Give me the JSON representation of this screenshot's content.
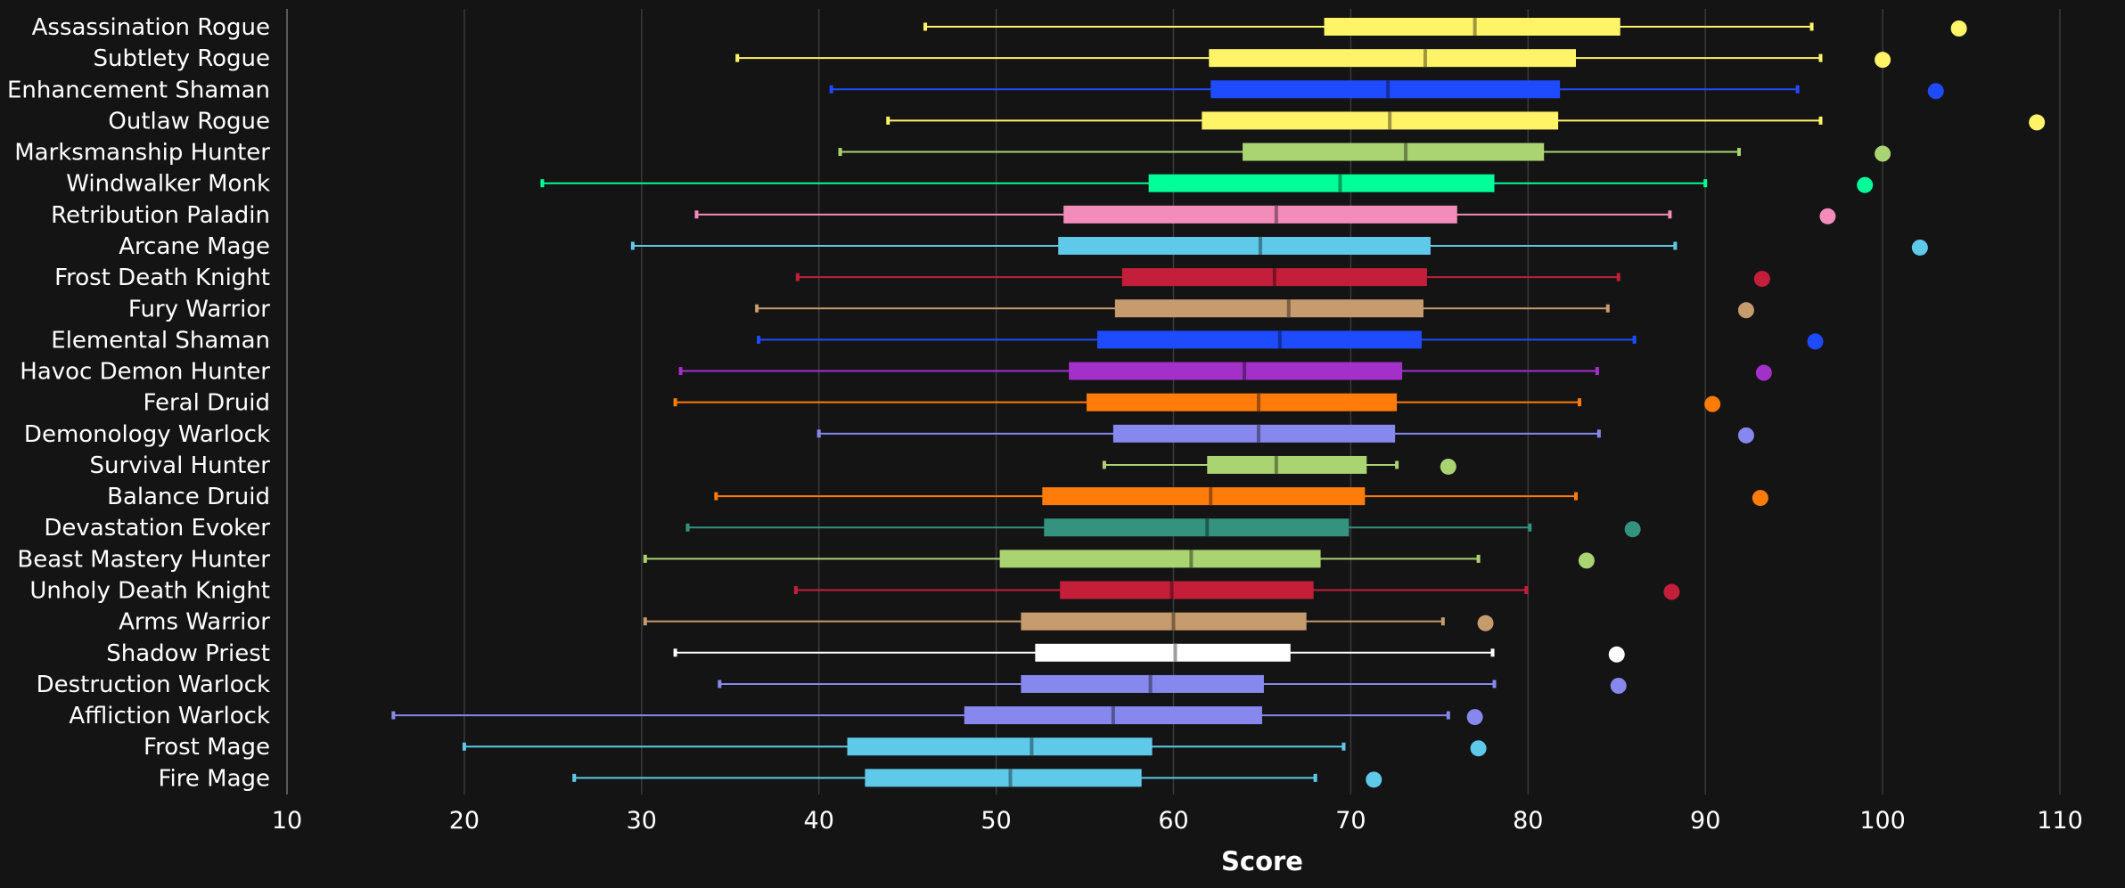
{
  "chart_data": {
    "type": "box",
    "xlabel": "Score",
    "xlim": [
      10,
      110
    ],
    "xticks": [
      10,
      20,
      30,
      40,
      50,
      60,
      70,
      80,
      90,
      100,
      110
    ],
    "grid": true,
    "background": "#141414",
    "series": [
      {
        "name": "Assassination Rogue",
        "color": "#FFF468",
        "min": 46.0,
        "q1": 68.5,
        "median": 77.0,
        "q3": 85.2,
        "max": 96.0,
        "outlier": 104.3
      },
      {
        "name": "Subtlety Rogue",
        "color": "#FFF468",
        "min": 35.4,
        "q1": 62.0,
        "median": 74.2,
        "q3": 82.7,
        "max": 96.5,
        "outlier": 100.0
      },
      {
        "name": "Enhancement Shaman",
        "color": "#1F4BFF",
        "min": 40.7,
        "q1": 62.1,
        "median": 72.1,
        "q3": 81.8,
        "max": 95.2,
        "outlier": 103.0
      },
      {
        "name": "Outlaw Rogue",
        "color": "#FFF468",
        "min": 43.9,
        "q1": 61.6,
        "median": 72.2,
        "q3": 81.7,
        "max": 96.5,
        "outlier": 108.7
      },
      {
        "name": "Marksmanship Hunter",
        "color": "#AAD372",
        "min": 41.2,
        "q1": 63.9,
        "median": 73.1,
        "q3": 80.9,
        "max": 91.9,
        "outlier": 100.0
      },
      {
        "name": "Windwalker Monk",
        "color": "#00FF98",
        "min": 24.4,
        "q1": 58.6,
        "median": 69.4,
        "q3": 78.1,
        "max": 90.0,
        "outlier": 99.0
      },
      {
        "name": "Retribution Paladin",
        "color": "#F48CBA",
        "min": 33.1,
        "q1": 53.8,
        "median": 65.8,
        "q3": 76.0,
        "max": 88.0,
        "outlier": 96.9
      },
      {
        "name": "Arcane Mage",
        "color": "#5FC9EA",
        "min": 29.5,
        "q1": 53.5,
        "median": 64.9,
        "q3": 74.5,
        "max": 88.3,
        "outlier": 102.1
      },
      {
        "name": "Frost Death Knight",
        "color": "#C41E3A",
        "min": 38.8,
        "q1": 57.1,
        "median": 65.7,
        "q3": 74.3,
        "max": 85.1,
        "outlier": 93.2
      },
      {
        "name": "Fury Warrior",
        "color": "#C69B6D",
        "min": 36.5,
        "q1": 56.7,
        "median": 66.5,
        "q3": 74.1,
        "max": 84.5,
        "outlier": 92.3
      },
      {
        "name": "Elemental Shaman",
        "color": "#1F4BFF",
        "min": 36.6,
        "q1": 55.7,
        "median": 66.0,
        "q3": 74.0,
        "max": 86.0,
        "outlier": 96.2
      },
      {
        "name": "Havoc Demon Hunter",
        "color": "#A330C9",
        "min": 32.2,
        "q1": 54.1,
        "median": 64.0,
        "q3": 72.9,
        "max": 83.9,
        "outlier": 93.3
      },
      {
        "name": "Feral Druid",
        "color": "#FF7C0A",
        "min": 31.9,
        "q1": 55.1,
        "median": 64.8,
        "q3": 72.6,
        "max": 82.9,
        "outlier": 90.4
      },
      {
        "name": "Demonology Warlock",
        "color": "#8788EE",
        "min": 40.0,
        "q1": 56.6,
        "median": 64.8,
        "q3": 72.5,
        "max": 84.0,
        "outlier": 92.3
      },
      {
        "name": "Survival Hunter",
        "color": "#AAD372",
        "min": 56.1,
        "q1": 61.9,
        "median": 65.8,
        "q3": 70.9,
        "max": 72.6,
        "outlier": 75.5
      },
      {
        "name": "Balance Druid",
        "color": "#FF7C0A",
        "min": 34.2,
        "q1": 52.6,
        "median": 62.1,
        "q3": 70.8,
        "max": 82.7,
        "outlier": 93.1
      },
      {
        "name": "Devastation Evoker",
        "color": "#33937F",
        "min": 32.6,
        "q1": 52.7,
        "median": 61.9,
        "q3": 69.9,
        "max": 80.1,
        "outlier": 85.9
      },
      {
        "name": "Beast Mastery Hunter",
        "color": "#AAD372",
        "min": 30.2,
        "q1": 50.2,
        "median": 61.0,
        "q3": 68.3,
        "max": 77.2,
        "outlier": 83.3
      },
      {
        "name": "Unholy Death Knight",
        "color": "#C41E3A",
        "min": 38.7,
        "q1": 53.6,
        "median": 59.9,
        "q3": 67.9,
        "max": 79.9,
        "outlier": 88.1
      },
      {
        "name": "Arms Warrior",
        "color": "#C69B6D",
        "min": 30.2,
        "q1": 51.4,
        "median": 60.0,
        "q3": 67.5,
        "max": 75.2,
        "outlier": 77.6
      },
      {
        "name": "Shadow Priest",
        "color": "#FFFFFF",
        "min": 31.9,
        "q1": 52.2,
        "median": 60.1,
        "q3": 66.6,
        "max": 78.0,
        "outlier": 85.0
      },
      {
        "name": "Destruction Warlock",
        "color": "#8788EE",
        "min": 34.4,
        "q1": 51.4,
        "median": 58.7,
        "q3": 65.1,
        "max": 78.1,
        "outlier": 85.1
      },
      {
        "name": "Affliction Warlock",
        "color": "#8788EE",
        "min": 16.0,
        "q1": 48.2,
        "median": 56.6,
        "q3": 65.0,
        "max": 75.5,
        "outlier": 77.0
      },
      {
        "name": "Frost Mage",
        "color": "#5FC9EA",
        "min": 20.0,
        "q1": 41.6,
        "median": 52.0,
        "q3": 58.8,
        "max": 69.6,
        "outlier": 77.2
      },
      {
        "name": "Fire Mage",
        "color": "#5FC9EA",
        "min": 26.2,
        "q1": 42.6,
        "median": 50.8,
        "q3": 58.2,
        "max": 68.0,
        "outlier": 71.3
      }
    ]
  }
}
